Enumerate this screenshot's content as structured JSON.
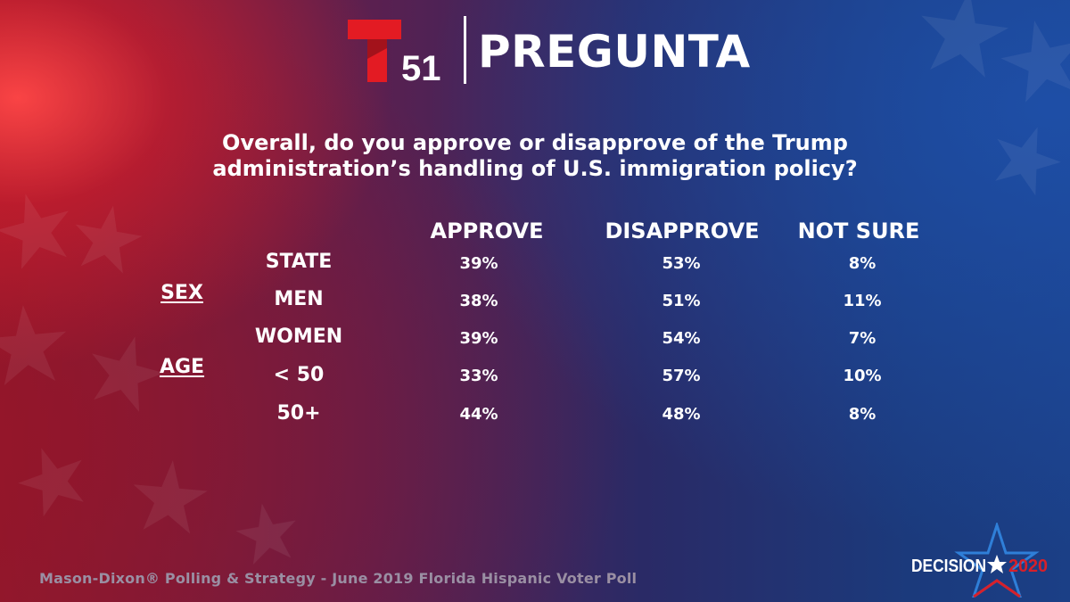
{
  "header": {
    "logo_number": "51",
    "title": "PREGUNTA"
  },
  "question": "Overall, do you approve or disapprove of the Trump administration’s handling of U.S. immigration policy?",
  "chart_data": {
    "type": "table",
    "columns": [
      "APPROVE",
      "DISAPPROVE",
      "NOT SURE"
    ],
    "groups": [
      {
        "label": "SEX",
        "rows": [
          "MEN",
          "WOMEN"
        ]
      },
      {
        "label": "AGE",
        "rows": [
          "< 50",
          "50+"
        ]
      }
    ],
    "rows": [
      {
        "label": "STATE",
        "values": [
          "39%",
          "53%",
          "8%"
        ]
      },
      {
        "label": "MEN",
        "values": [
          "38%",
          "51%",
          "11%"
        ]
      },
      {
        "label": "WOMEN",
        "values": [
          "39%",
          "54%",
          "7%"
        ]
      },
      {
        "label": "< 50",
        "values": [
          "33%",
          "57%",
          "10%"
        ]
      },
      {
        "label": "50+",
        "values": [
          "44%",
          "48%",
          "8%"
        ]
      }
    ]
  },
  "footer": {
    "source": "Mason-Dixon® Polling & Strategy - June 2019 Florida Hispanic Voter Poll",
    "badge_left": "DECISION",
    "badge_right": "2020"
  },
  "colors": {
    "logo_red": "#e31b23",
    "star_blue": "#2f7fd8",
    "star_red": "#d6202a",
    "source_gray": "#9a8fa3"
  }
}
